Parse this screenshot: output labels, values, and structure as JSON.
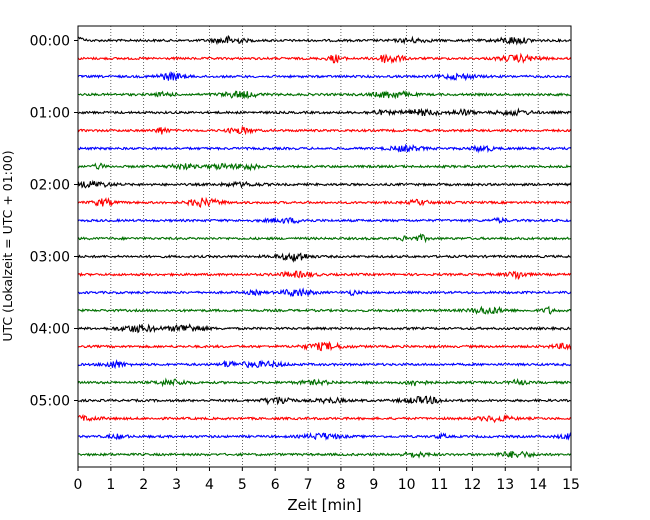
{
  "chart_data": {
    "type": "line",
    "description_kind": "helicorder",
    "xlabel": "Zeit  [min]",
    "ylabel": "UTC (Lokalzeit = UTC + 01:00)",
    "xlim": [
      0,
      15
    ],
    "x_ticks": [
      0,
      1,
      2,
      3,
      4,
      5,
      6,
      7,
      8,
      9,
      10,
      11,
      12,
      13,
      14,
      15
    ],
    "x_tick_labels": [
      "0",
      "1",
      "2",
      "3",
      "4",
      "5",
      "6",
      "7",
      "8",
      "9",
      "10",
      "11",
      "12",
      "13",
      "14",
      "15"
    ],
    "y_tick_labels": [
      "00:00",
      "01:00",
      "02:00",
      "03:00",
      "04:00",
      "05:00"
    ],
    "y_tick_traces": [
      0,
      4,
      8,
      12,
      16,
      20
    ],
    "trace_interval_minutes": 15,
    "trace_count": 24,
    "trace_colors": [
      "#000000",
      "#ff0000",
      "#0000ff",
      "#007000"
    ],
    "grid": "vertical dotted",
    "series": [
      {
        "start": "00:00",
        "color": "#000000"
      },
      {
        "start": "00:15",
        "color": "#ff0000"
      },
      {
        "start": "00:30",
        "color": "#0000ff"
      },
      {
        "start": "00:45",
        "color": "#007000"
      },
      {
        "start": "01:00",
        "color": "#000000"
      },
      {
        "start": "01:15",
        "color": "#ff0000"
      },
      {
        "start": "01:30",
        "color": "#0000ff"
      },
      {
        "start": "01:45",
        "color": "#007000"
      },
      {
        "start": "02:00",
        "color": "#000000"
      },
      {
        "start": "02:15",
        "color": "#ff0000"
      },
      {
        "start": "02:30",
        "color": "#0000ff"
      },
      {
        "start": "02:45",
        "color": "#007000"
      },
      {
        "start": "03:00",
        "color": "#000000"
      },
      {
        "start": "03:15",
        "color": "#ff0000"
      },
      {
        "start": "03:30",
        "color": "#0000ff"
      },
      {
        "start": "03:45",
        "color": "#007000"
      },
      {
        "start": "04:00",
        "color": "#000000"
      },
      {
        "start": "04:15",
        "color": "#ff0000"
      },
      {
        "start": "04:30",
        "color": "#0000ff"
      },
      {
        "start": "04:45",
        "color": "#007000"
      },
      {
        "start": "05:00",
        "color": "#000000"
      },
      {
        "start": "05:15",
        "color": "#ff0000"
      },
      {
        "start": "05:30",
        "color": "#0000ff"
      },
      {
        "start": "05:45",
        "color": "#007000"
      }
    ]
  }
}
